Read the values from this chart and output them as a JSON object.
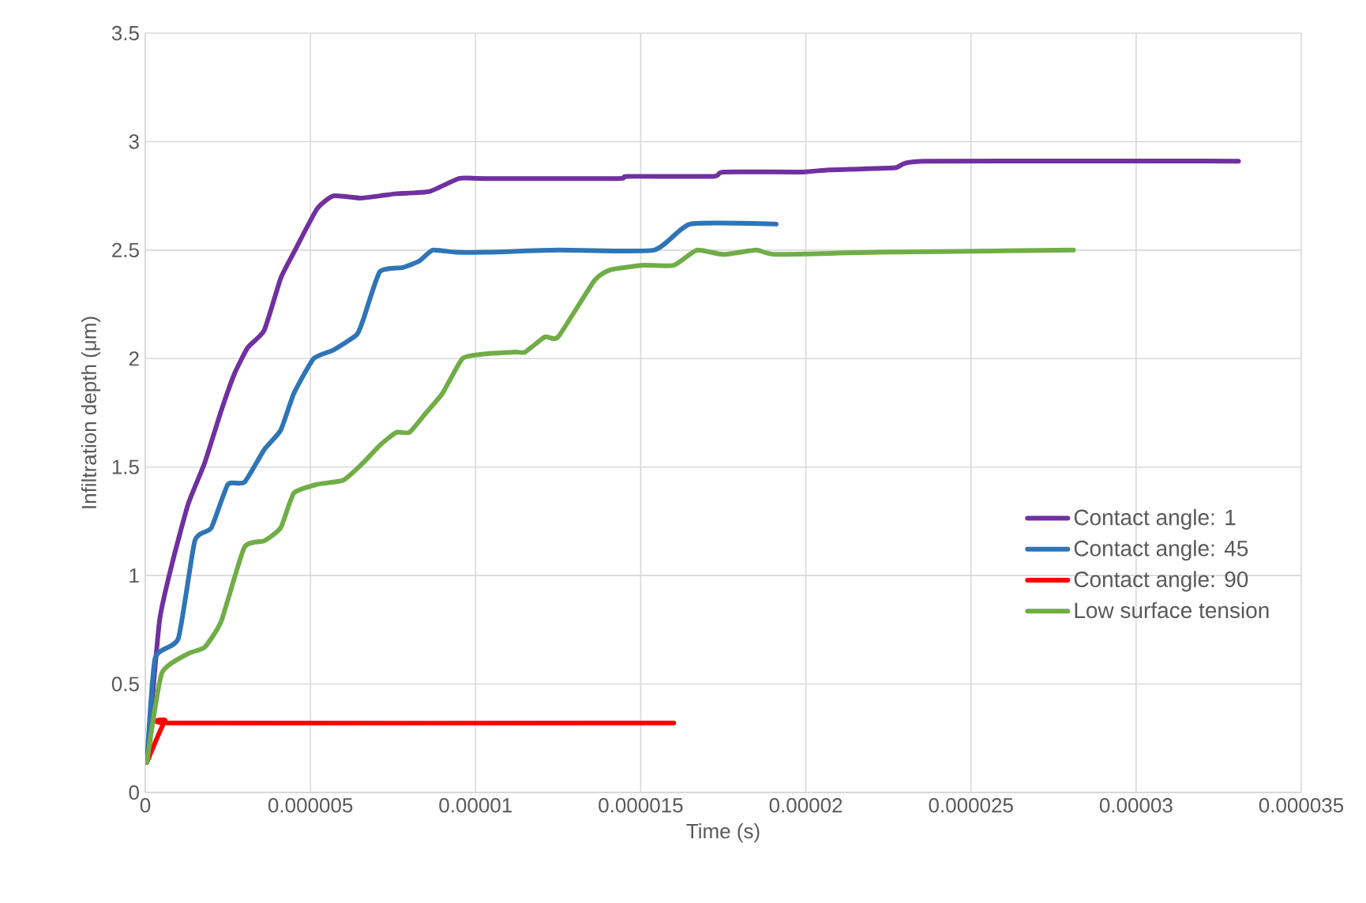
{
  "chart_data": {
    "type": "line",
    "xlabel": "Time (s)",
    "ylabel": "Infiltration depth (μm)",
    "xlim": [
      0,
      3.5e-05
    ],
    "ylim": [
      0,
      3.5
    ],
    "xticks": [
      {
        "value": 0,
        "label": "0"
      },
      {
        "value": 5e-06,
        "label": "0.000005"
      },
      {
        "value": 1e-05,
        "label": "0.00001"
      },
      {
        "value": 1.5e-05,
        "label": "0.000015"
      },
      {
        "value": 2e-05,
        "label": "0.00002"
      },
      {
        "value": 2.5e-05,
        "label": "0.000025"
      },
      {
        "value": 3e-05,
        "label": "0.00003"
      },
      {
        "value": 3.5e-05,
        "label": "0.000035"
      }
    ],
    "yticks": [
      {
        "value": 0,
        "label": "0"
      },
      {
        "value": 0.5,
        "label": "0.5"
      },
      {
        "value": 1,
        "label": "1"
      },
      {
        "value": 1.5,
        "label": "1.5"
      },
      {
        "value": 2,
        "label": "2"
      },
      {
        "value": 2.5,
        "label": "2.5"
      },
      {
        "value": 3,
        "label": "3"
      },
      {
        "value": 3.5,
        "label": "3.5"
      }
    ],
    "grid": true,
    "legend": "right",
    "marker": "none",
    "line_style": "solid",
    "series": [
      {
        "name": "Contact angle: 1",
        "color": "#7030a0",
        "x": [
          5e-08,
          4.3e-07,
          8.2e-07,
          1.3e-06,
          1.8e-06,
          2.3e-06,
          2.7e-06,
          3.1e-06,
          3.6e-06,
          4.1e-06,
          4.5e-06,
          5.2e-06,
          5.7e-06,
          6.5e-06,
          7.1e-06,
          7.6e-06,
          8.6e-06,
          9.5e-06,
          1.03e-05,
          1.43e-05,
          1.46e-05,
          1.72e-05,
          1.75e-05,
          1.99e-05,
          2.07e-05,
          2.27e-05,
          2.36e-05,
          3.31e-05
        ],
        "values": [
          0.14,
          0.79,
          1.06,
          1.33,
          1.52,
          1.76,
          1.93,
          2.05,
          2.13,
          2.37,
          2.49,
          2.69,
          2.75,
          2.74,
          2.75,
          2.76,
          2.77,
          2.83,
          2.83,
          2.83,
          2.84,
          2.84,
          2.86,
          2.86,
          2.87,
          2.88,
          2.91,
          2.91
        ]
      },
      {
        "name": "Contact angle: 45",
        "color": "#2e75b6",
        "x": [
          5e-08,
          3e-07,
          1e-06,
          1.5e-06,
          2e-06,
          2.5e-06,
          3e-06,
          3.6e-06,
          4.1e-06,
          4.5e-06,
          5.1e-06,
          5.7e-06,
          6.4e-06,
          6.6e-06,
          7.1e-06,
          7.8e-06,
          8.3e-06,
          8.7e-06,
          9.4e-06,
          1.03e-05,
          1.25e-05,
          1.54e-05,
          1.65e-05,
          1.91e-05
        ],
        "values": [
          0.14,
          0.62,
          0.71,
          1.16,
          1.22,
          1.42,
          1.43,
          1.58,
          1.67,
          1.84,
          2.0,
          2.04,
          2.11,
          2.18,
          2.4,
          2.42,
          2.45,
          2.5,
          2.49,
          2.49,
          2.5,
          2.5,
          2.62,
          2.62
        ]
      },
      {
        "name": "Contact angle: 90",
        "color": "#ff0000",
        "x": [
          5e-08,
          6e-07,
          1e-06,
          1.6e-05
        ],
        "values": [
          0.14,
          0.33,
          0.32,
          0.32
        ]
      },
      {
        "name": "Low surface tension",
        "color": "#70ad47",
        "x": [
          5e-08,
          5e-07,
          1.3e-06,
          1.8e-06,
          2.3e-06,
          3e-06,
          3.6e-06,
          4.1e-06,
          4.5e-06,
          5.2e-06,
          6e-06,
          6.6e-06,
          7.1e-06,
          7.6e-06,
          8e-06,
          8.5e-06,
          9e-06,
          9.6e-06,
          1.02e-05,
          1.12e-05,
          1.15e-05,
          1.21e-05,
          1.25e-05,
          1.36e-05,
          1.41e-05,
          1.51e-05,
          1.6e-05,
          1.67e-05,
          1.75e-05,
          1.85e-05,
          1.91e-05,
          2.22e-05,
          2.81e-05
        ],
        "values": [
          0.14,
          0.55,
          0.64,
          0.67,
          0.79,
          1.13,
          1.16,
          1.22,
          1.38,
          1.42,
          1.44,
          1.52,
          1.6,
          1.66,
          1.66,
          1.75,
          1.84,
          2.0,
          2.02,
          2.03,
          2.03,
          2.1,
          2.1,
          2.36,
          2.41,
          2.43,
          2.43,
          2.5,
          2.48,
          2.5,
          2.48,
          2.49,
          2.5
        ]
      }
    ]
  }
}
